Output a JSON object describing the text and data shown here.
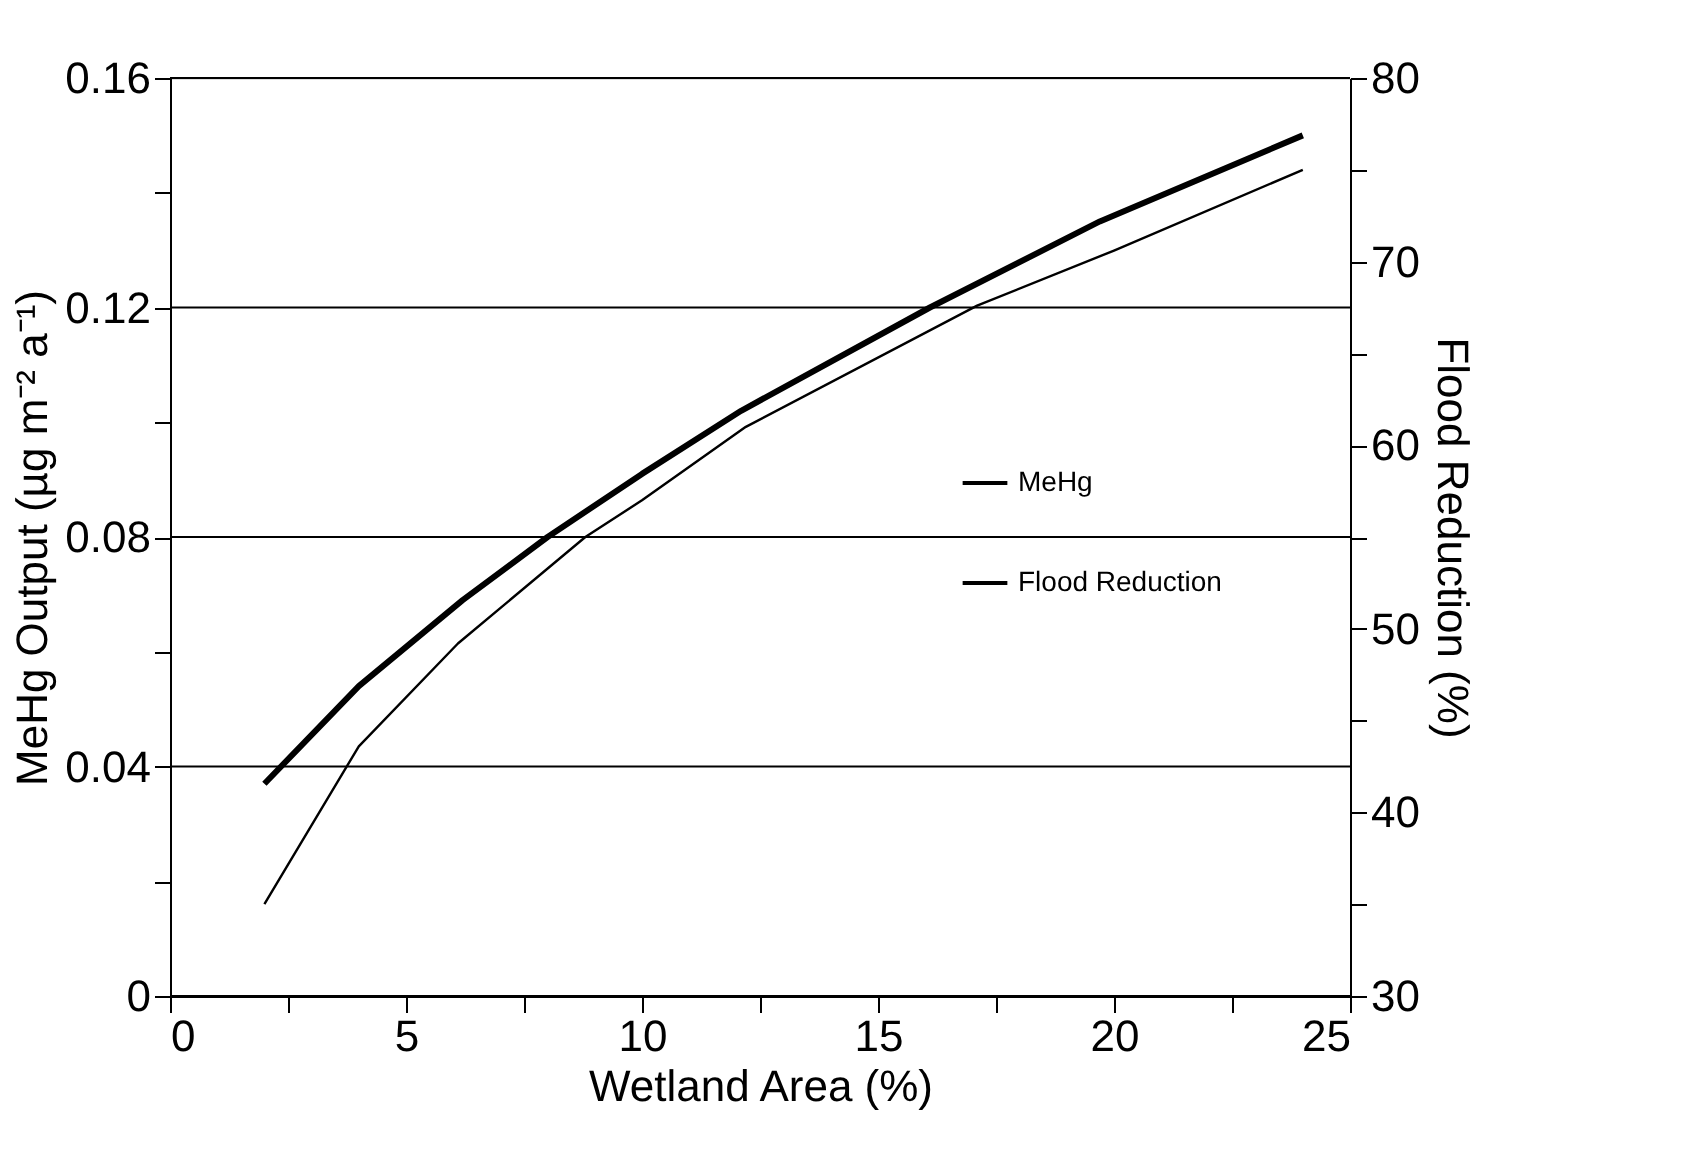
{
  "chart_data": {
    "type": "line",
    "xlabel": "Wetland Area (%)",
    "ylabel": "MeHg Output (µg m⁻² a⁻¹)",
    "y2label": "Flood Reduction (%)",
    "xlim": [
      0,
      25
    ],
    "xticks": [
      0,
      {
        "value": 2.5,
        "label": null
      },
      5,
      {
        "value": 7.5,
        "label": null
      },
      10,
      {
        "value": 12.5,
        "label": null
      },
      15,
      {
        "value": 17.5,
        "label": null
      },
      20,
      {
        "value": 22.5,
        "label": null
      },
      25
    ],
    "ylim": [
      0,
      0.16
    ],
    "yticks": [
      0,
      {
        "value": 0.02,
        "label": null
      },
      0.04,
      {
        "value": 0.06,
        "label": null
      },
      0.08,
      {
        "value": 0.1,
        "label": null
      },
      0.12,
      {
        "value": 0.14,
        "label": null
      },
      0.16
    ],
    "y2lim": [
      30,
      80
    ],
    "y2ticks": [
      30,
      {
        "value": 35,
        "label": null
      },
      40,
      {
        "value": 45,
        "label": null
      },
      50,
      {
        "value": 55,
        "label": null
      },
      60,
      {
        "value": 65,
        "label": null
      },
      70,
      {
        "value": 75,
        "label": null
      },
      80
    ],
    "grid": "y",
    "legend": "right",
    "marker": "none",
    "line_style": "solid",
    "series": [
      {
        "name": "MeHg",
        "color": "#000000",
        "x": [
          2,
          4,
          6.2,
          8,
          10,
          12.1,
          16.1,
          19.7,
          24
        ],
        "values": [
          0.037,
          0.054,
          0.069,
          0.08,
          0.091,
          0.102,
          0.12,
          0.135,
          0.15
        ]
      },
      {
        "name": "Flood Reduction",
        "color": "#000000",
        "axis": "y2",
        "x": [
          2,
          4,
          6.1,
          8.8,
          10,
          12.2,
          17.1,
          20,
          24
        ],
        "values": [
          35,
          43.6,
          49.2,
          55,
          57,
          61,
          67.6,
          70.6,
          75
        ]
      }
    ]
  }
}
